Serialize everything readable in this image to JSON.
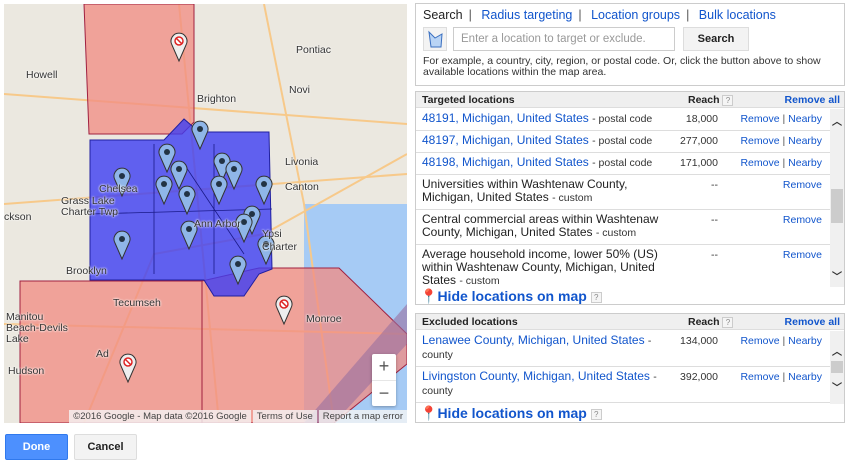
{
  "map": {
    "labels": [
      "Howell",
      "Pontiac",
      "Brighton",
      "Novi",
      "Livonia",
      "Canton",
      "Chelsea",
      "Ann Arbor",
      "Ypsi",
      "Charter",
      "Grass Lake",
      "Charter Twp",
      "ckson",
      "Brooklyn",
      "Tecumseh",
      "Manitou",
      "Beach-Devils",
      "Lake",
      "Ad",
      "Hudson",
      "Monroe"
    ],
    "highway_shields": [
      "96",
      "23",
      "59",
      "24",
      "275",
      "696",
      "96",
      "36",
      "94",
      "12",
      "94",
      "12",
      "223",
      "23",
      "275",
      "75"
    ],
    "zoom_in": "+",
    "zoom_out": "−",
    "attribution": "©2016 Google - Map data ©2016 Google",
    "terms": "Terms of Use",
    "report": "Report a map error",
    "colors": {
      "excluded": "#f28b82",
      "targeted": "#4a4ff0"
    }
  },
  "search": {
    "tabs": [
      {
        "label": "Search",
        "active": true
      },
      {
        "label": "Radius targeting"
      },
      {
        "label": "Location groups"
      },
      {
        "label": "Bulk locations"
      }
    ],
    "placeholder": "Enter a location to target or exclude.",
    "button": "Search",
    "hint": "For example, a country, city, region, or postal code. Or, click the button above to show available locations within the map area."
  },
  "targeted": {
    "title": "Targeted locations",
    "reach_label": "Reach",
    "help": "?",
    "remove_all": "Remove all",
    "rows": [
      {
        "name": "48191, Michigan, United States",
        "type": "- postal code",
        "reach": "18,000",
        "link": true,
        "nearby": true
      },
      {
        "name": "48197, Michigan, United States",
        "type": "- postal code",
        "reach": "277,000",
        "link": true,
        "nearby": true
      },
      {
        "name": "48198, Michigan, United States",
        "type": "- postal code",
        "reach": "171,000",
        "link": true,
        "nearby": true
      },
      {
        "name": "Universities within Washtenaw County, Michigan, United States",
        "type": "- custom",
        "reach": "--",
        "link": false,
        "nearby": false
      },
      {
        "name": "Central commercial areas within Washtenaw County, Michigan, United States",
        "type": "- custom",
        "reach": "--",
        "link": false,
        "nearby": false
      },
      {
        "name": "Average household income, lower 50% (US) within Washtenaw County, Michigan, United States",
        "type": "- custom",
        "reach": "--",
        "link": false,
        "nearby": false
      }
    ],
    "remove": "Remove",
    "nearby": "Nearby",
    "hide": "Hide locations on map"
  },
  "excluded": {
    "title": "Excluded locations",
    "reach_label": "Reach",
    "help": "?",
    "remove_all": "Remove all",
    "rows": [
      {
        "name": "Lenawee County, Michigan, United States",
        "type": "- county",
        "reach": "134,000",
        "link": true,
        "nearby": true
      },
      {
        "name": "Livingston County, Michigan, United States",
        "type": "- county",
        "reach": "392,000",
        "link": true,
        "nearby": true
      }
    ],
    "remove": "Remove",
    "nearby": "Nearby",
    "hide": "Hide locations on map"
  },
  "footer": {
    "done": "Done",
    "cancel": "Cancel"
  }
}
